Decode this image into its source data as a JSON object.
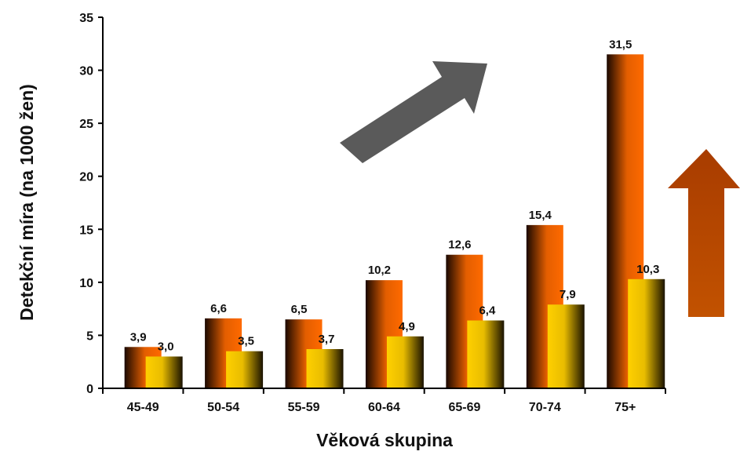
{
  "chart_data": {
    "type": "bar",
    "categories": [
      "45-49",
      "50-54",
      "55-59",
      "60-64",
      "65-69",
      "70-74",
      "75+"
    ],
    "series": [
      {
        "values": [
          3.9,
          6.6,
          6.5,
          10.2,
          12.6,
          15.4,
          31.5
        ],
        "labels": [
          "3,9",
          "6,6",
          "6,5",
          "10,2",
          "12,6",
          "15,4",
          "31,5"
        ]
      },
      {
        "values": [
          3.0,
          3.5,
          3.7,
          4.9,
          6.4,
          7.9,
          10.3
        ],
        "labels": [
          "3,0",
          "3,5",
          "3,7",
          "4,9",
          "6,4",
          "7,9",
          "10,3"
        ]
      }
    ],
    "title": "",
    "xlabel": "Věková skupina",
    "ylabel": "Detekční míra (na 1000 žen)",
    "ylim": [
      0,
      35
    ],
    "yticks": [
      0,
      5,
      10,
      15,
      20,
      25,
      30,
      35
    ],
    "grid": false,
    "legend": "none"
  },
  "colors": {
    "series_1_dark": "#1a0800",
    "series_1_light": "#ff6a00",
    "series_2_light": "#ffd000",
    "series_2_dark": "#1a1200",
    "gray_arrow": "#5a5a5a",
    "brown_arrow": "#b34400"
  },
  "annotations": {
    "gray_arrow_icon": "diagonal-up-right-arrow-icon",
    "brown_arrow_icon": "up-arrow-icon"
  }
}
